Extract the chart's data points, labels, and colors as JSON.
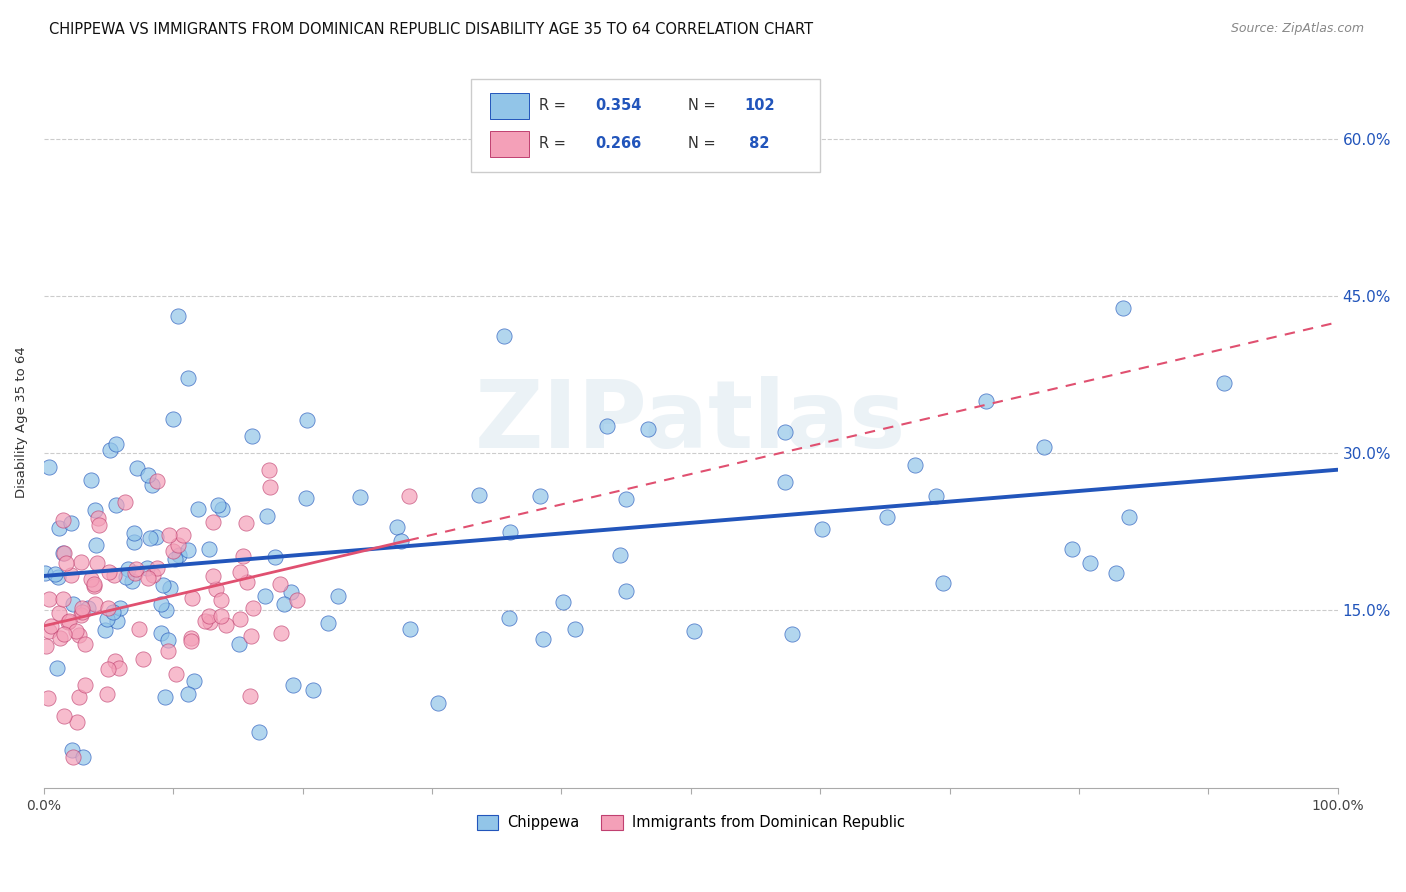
{
  "title": "CHIPPEWA VS IMMIGRANTS FROM DOMINICAN REPUBLIC DISABILITY AGE 35 TO 64 CORRELATION CHART",
  "source": "Source: ZipAtlas.com",
  "ylabel": "Disability Age 35 to 64",
  "yticks_labels": [
    "15.0%",
    "30.0%",
    "45.0%",
    "60.0%"
  ],
  "ytick_values": [
    0.15,
    0.3,
    0.45,
    0.6
  ],
  "xlim": [
    0.0,
    1.0
  ],
  "ylim": [
    -0.02,
    0.68
  ],
  "color_blue": "#92C5E8",
  "color_pink": "#F4A0B8",
  "line_blue": "#2255BB",
  "line_pink_solid": "#E05070",
  "line_pink_dashed": "#E05070",
  "title_fontsize": 10.5,
  "source_fontsize": 9,
  "label_fontsize": 9.5,
  "tick_fontsize": 9,
  "N_blue": 102,
  "N_pink": 82,
  "R_blue": 0.354,
  "R_pink": 0.266
}
